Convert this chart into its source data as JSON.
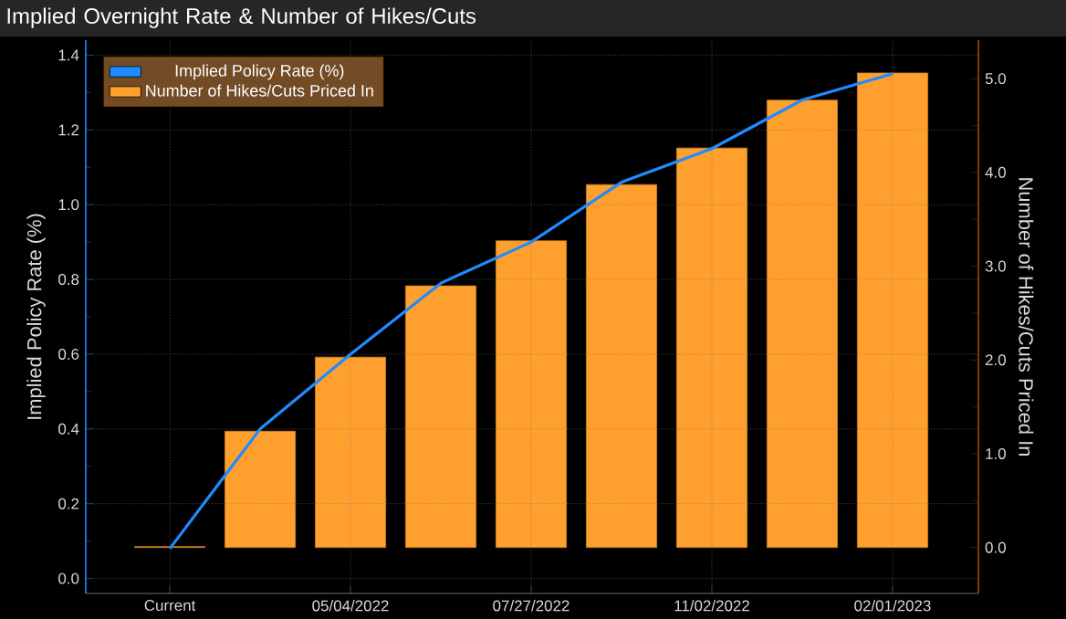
{
  "chart_data": {
    "type": "bar",
    "title": "Implied Overnight Rate & Number of Hikes/Cuts",
    "ylabel": "Implied Policy Rate (%)",
    "y2label": "Number of Hikes/Cuts Priced In",
    "categories": [
      "Current",
      null,
      "05/04/2022",
      null,
      "07/27/2022",
      null,
      "11/02/2022",
      null,
      "02/01/2023"
    ],
    "series": [
      {
        "name": "Implied Policy Rate (%)",
        "type": "line",
        "color": "#1e8cff",
        "values": [
          0.08,
          0.4,
          0.6,
          0.79,
          0.9,
          1.06,
          1.15,
          1.28,
          1.35
        ]
      },
      {
        "name": "Number of Hikes/Cuts Priced In",
        "axis": "y2",
        "color": "#ffa02e",
        "values": [
          0.01,
          1.24,
          2.03,
          2.79,
          3.27,
          3.87,
          4.26,
          4.77,
          5.06
        ]
      }
    ],
    "ylim": [
      -0.04,
      1.44
    ],
    "yticks": [
      {
        "value": 0,
        "label": "0.0"
      },
      0.2,
      0.4,
      0.6,
      0.8,
      {
        "value": 1,
        "label": "1.0"
      },
      1.2,
      1.4
    ],
    "y2lim": [
      -0.49,
      5.41
    ],
    "y2ticks": [
      {
        "value": 0,
        "label": "0.0"
      },
      {
        "value": 1,
        "label": "1.0"
      },
      {
        "value": 2,
        "label": "2.0"
      },
      {
        "value": 3,
        "label": "3.0"
      },
      {
        "value": 4,
        "label": "4.0"
      },
      {
        "value": 5,
        "label": "5.0"
      }
    ],
    "grid": true,
    "legend": "top left",
    "marker": "none"
  }
}
